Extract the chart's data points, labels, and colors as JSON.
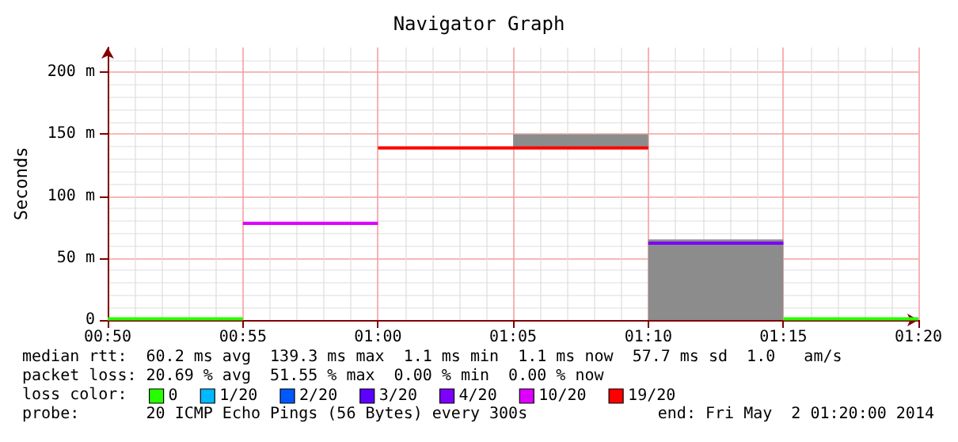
{
  "chart_data": {
    "type": "step",
    "title": "Navigator Graph",
    "ylabel": "Seconds",
    "xlim": [
      0.8333,
      1.3333
    ],
    "xticks": [
      {
        "value": 0.8333,
        "label": "00:50"
      },
      {
        "value": 0.9167,
        "label": "00:55"
      },
      {
        "value": 1.0,
        "label": "01:00"
      },
      {
        "value": 1.0833,
        "label": "01:05"
      },
      {
        "value": 1.1667,
        "label": "01:10"
      },
      {
        "value": 1.25,
        "label": "01:15"
      },
      {
        "value": 1.3333,
        "label": "01:20"
      }
    ],
    "ylim": [
      0,
      220
    ],
    "yticks": [
      0,
      {
        "value": 50,
        "label": "50 m"
      },
      {
        "value": 100,
        "label": "100 m"
      },
      {
        "value": 150,
        "label": "150 m"
      },
      {
        "value": 200,
        "label": "200 m"
      }
    ],
    "grid": true,
    "legend": "bottom",
    "legend_title": "loss color:",
    "series": [
      {
        "type": "bar",
        "color": "#8c8c8c",
        "x": [
          1.125,
          1.2083
        ],
        "base": [
          139,
          0
        ],
        "values": [
          11,
          65
        ]
      },
      {
        "name": "0",
        "color": "#26ff00",
        "x": [
          0.8333,
          0.9167,
          null,
          1.25,
          1.3333
        ],
        "values": [
          1,
          1,
          null,
          1,
          1
        ]
      },
      {
        "name": "1/20",
        "color": "#00b8ff"
      },
      {
        "name": "2/20",
        "color": "#0059ff"
      },
      {
        "name": "3/20",
        "color": "#5e00ff"
      },
      {
        "name": "4/20",
        "color": "#7e00ff",
        "x": [
          1.1667,
          1.25
        ],
        "values": [
          62,
          62
        ]
      },
      {
        "name": "10/20",
        "color": "#dd00ff",
        "x": [
          0.9167,
          1.0
        ],
        "values": [
          78,
          78
        ]
      },
      {
        "name": "19/20",
        "color": "#ff0000",
        "x": [
          1.0,
          1.1667
        ],
        "values": [
          139,
          139
        ]
      }
    ],
    "annotations": [
      "median rtt:  60.2 ms avg  139.3 ms max  1.1 ms min  1.1 ms now  57.7 ms sd  1.0   am/s",
      "packet loss: 20.69 % avg  51.55 % max  0.00 % min  0.00 % now",
      "probe:       20 ICMP Echo Pings (56 Bytes) every 300s",
      "end: Fri May  2 01:20:00 2014"
    ]
  }
}
